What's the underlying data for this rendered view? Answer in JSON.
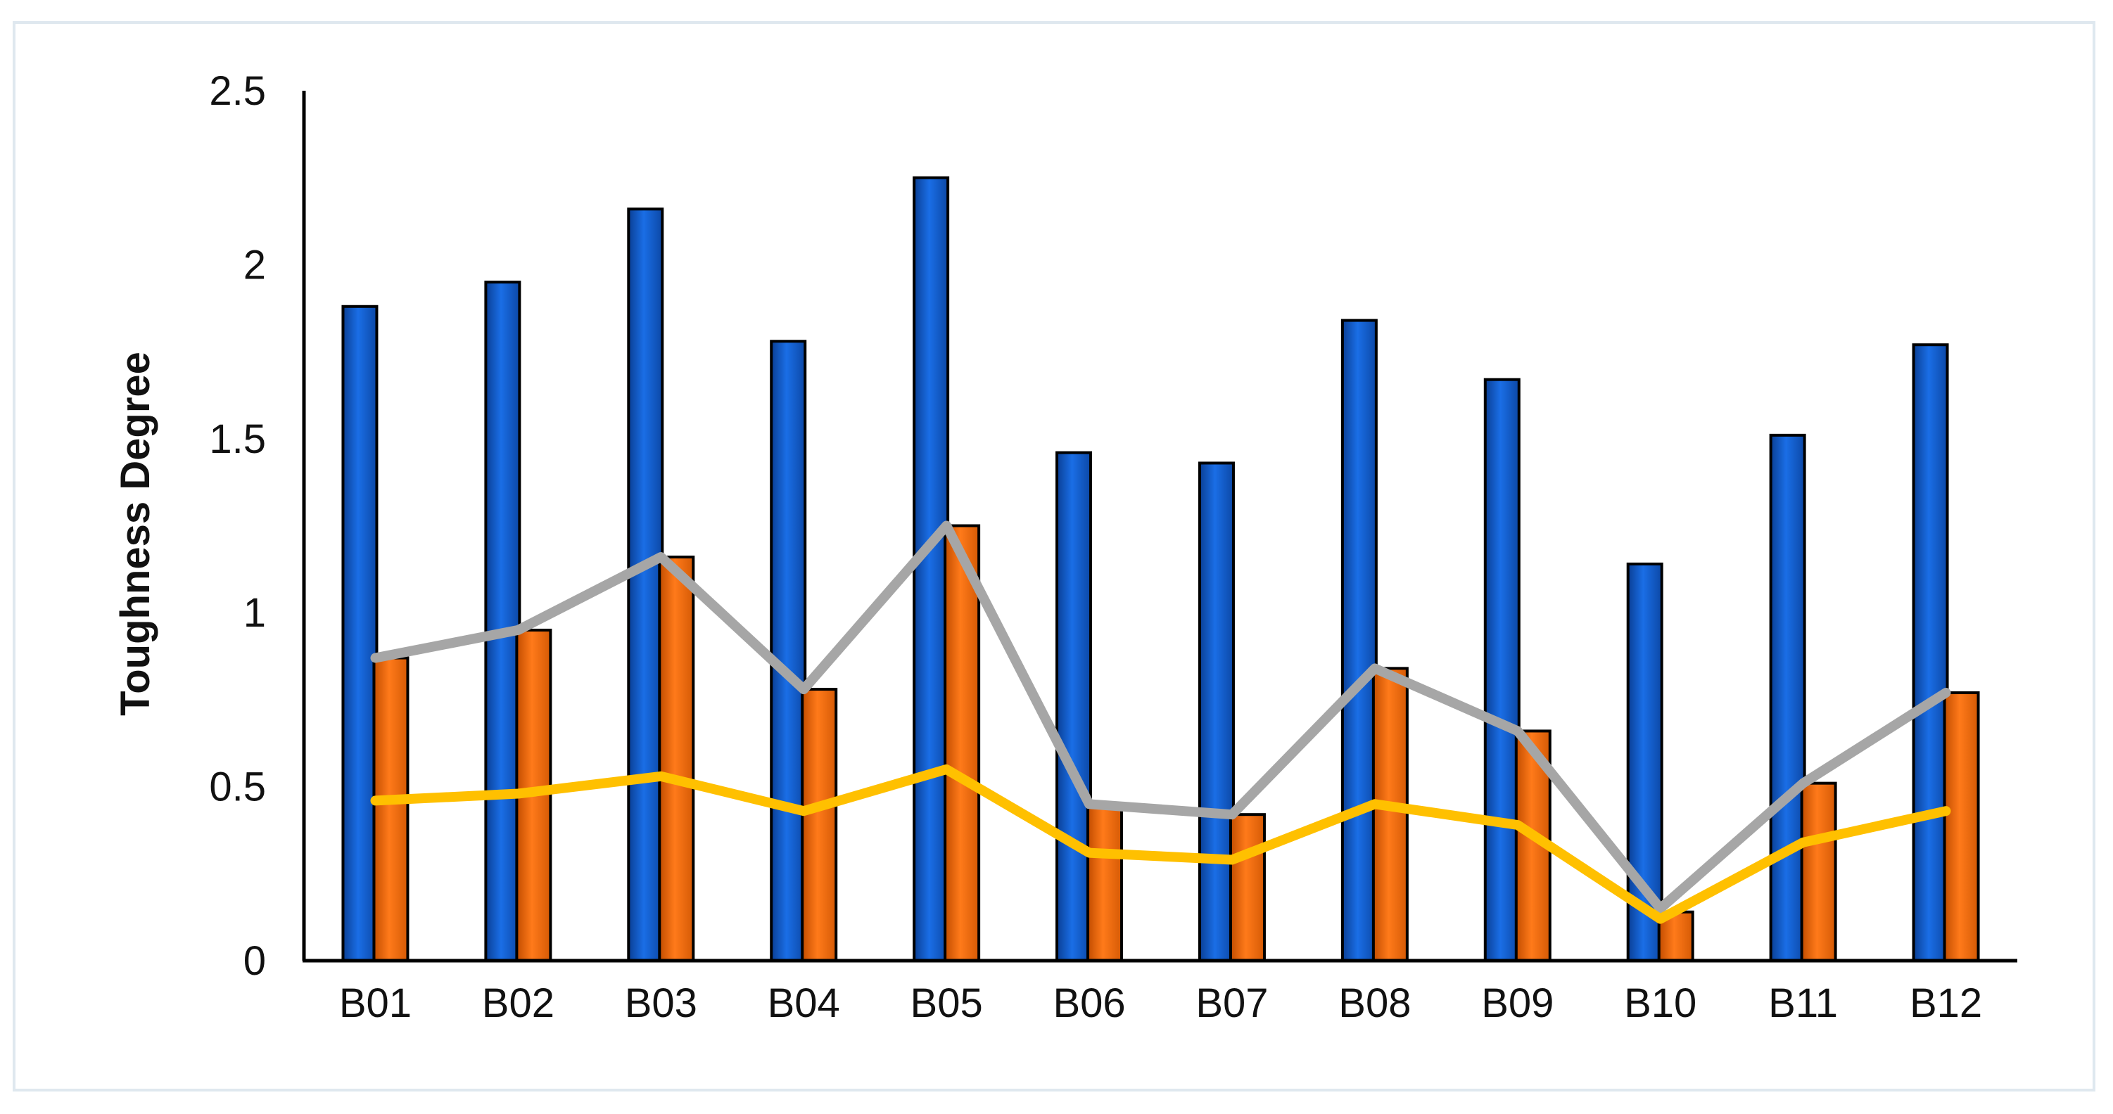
{
  "chart_data": {
    "type": "bar",
    "title": "",
    "xlabel": "",
    "ylabel": "Toughness Degree",
    "ylim": [
      0,
      2.5
    ],
    "yticks": [
      "0",
      "0.5",
      "1",
      "1.5",
      "2",
      "2.5"
    ],
    "categories": [
      "B01",
      "B02",
      "B03",
      "B04",
      "B05",
      "B06",
      "B07",
      "B08",
      "B09",
      "B10",
      "B11",
      "B12"
    ],
    "grid": false,
    "legend": "none",
    "bar_series": [
      {
        "values": [
          1.88,
          1.95,
          2.16,
          1.78,
          2.25,
          1.46,
          1.43,
          1.84,
          1.67,
          1.14,
          1.51,
          1.77
        ],
        "color": "#1565d8"
      },
      {
        "values": [
          0.87,
          0.95,
          1.16,
          0.78,
          1.25,
          0.44,
          0.42,
          0.84,
          0.66,
          0.14,
          0.51,
          0.77
        ],
        "color": "#f06a0f"
      }
    ],
    "line_series": [
      {
        "values": [
          0.87,
          0.95,
          1.16,
          0.78,
          1.25,
          0.45,
          0.42,
          0.84,
          0.66,
          0.15,
          0.51,
          0.77
        ],
        "color": "#a6a6a6"
      },
      {
        "values": [
          0.46,
          0.48,
          0.53,
          0.43,
          0.55,
          0.31,
          0.29,
          0.45,
          0.39,
          0.12,
          0.34,
          0.43
        ],
        "color": "#ffc000"
      }
    ]
  }
}
